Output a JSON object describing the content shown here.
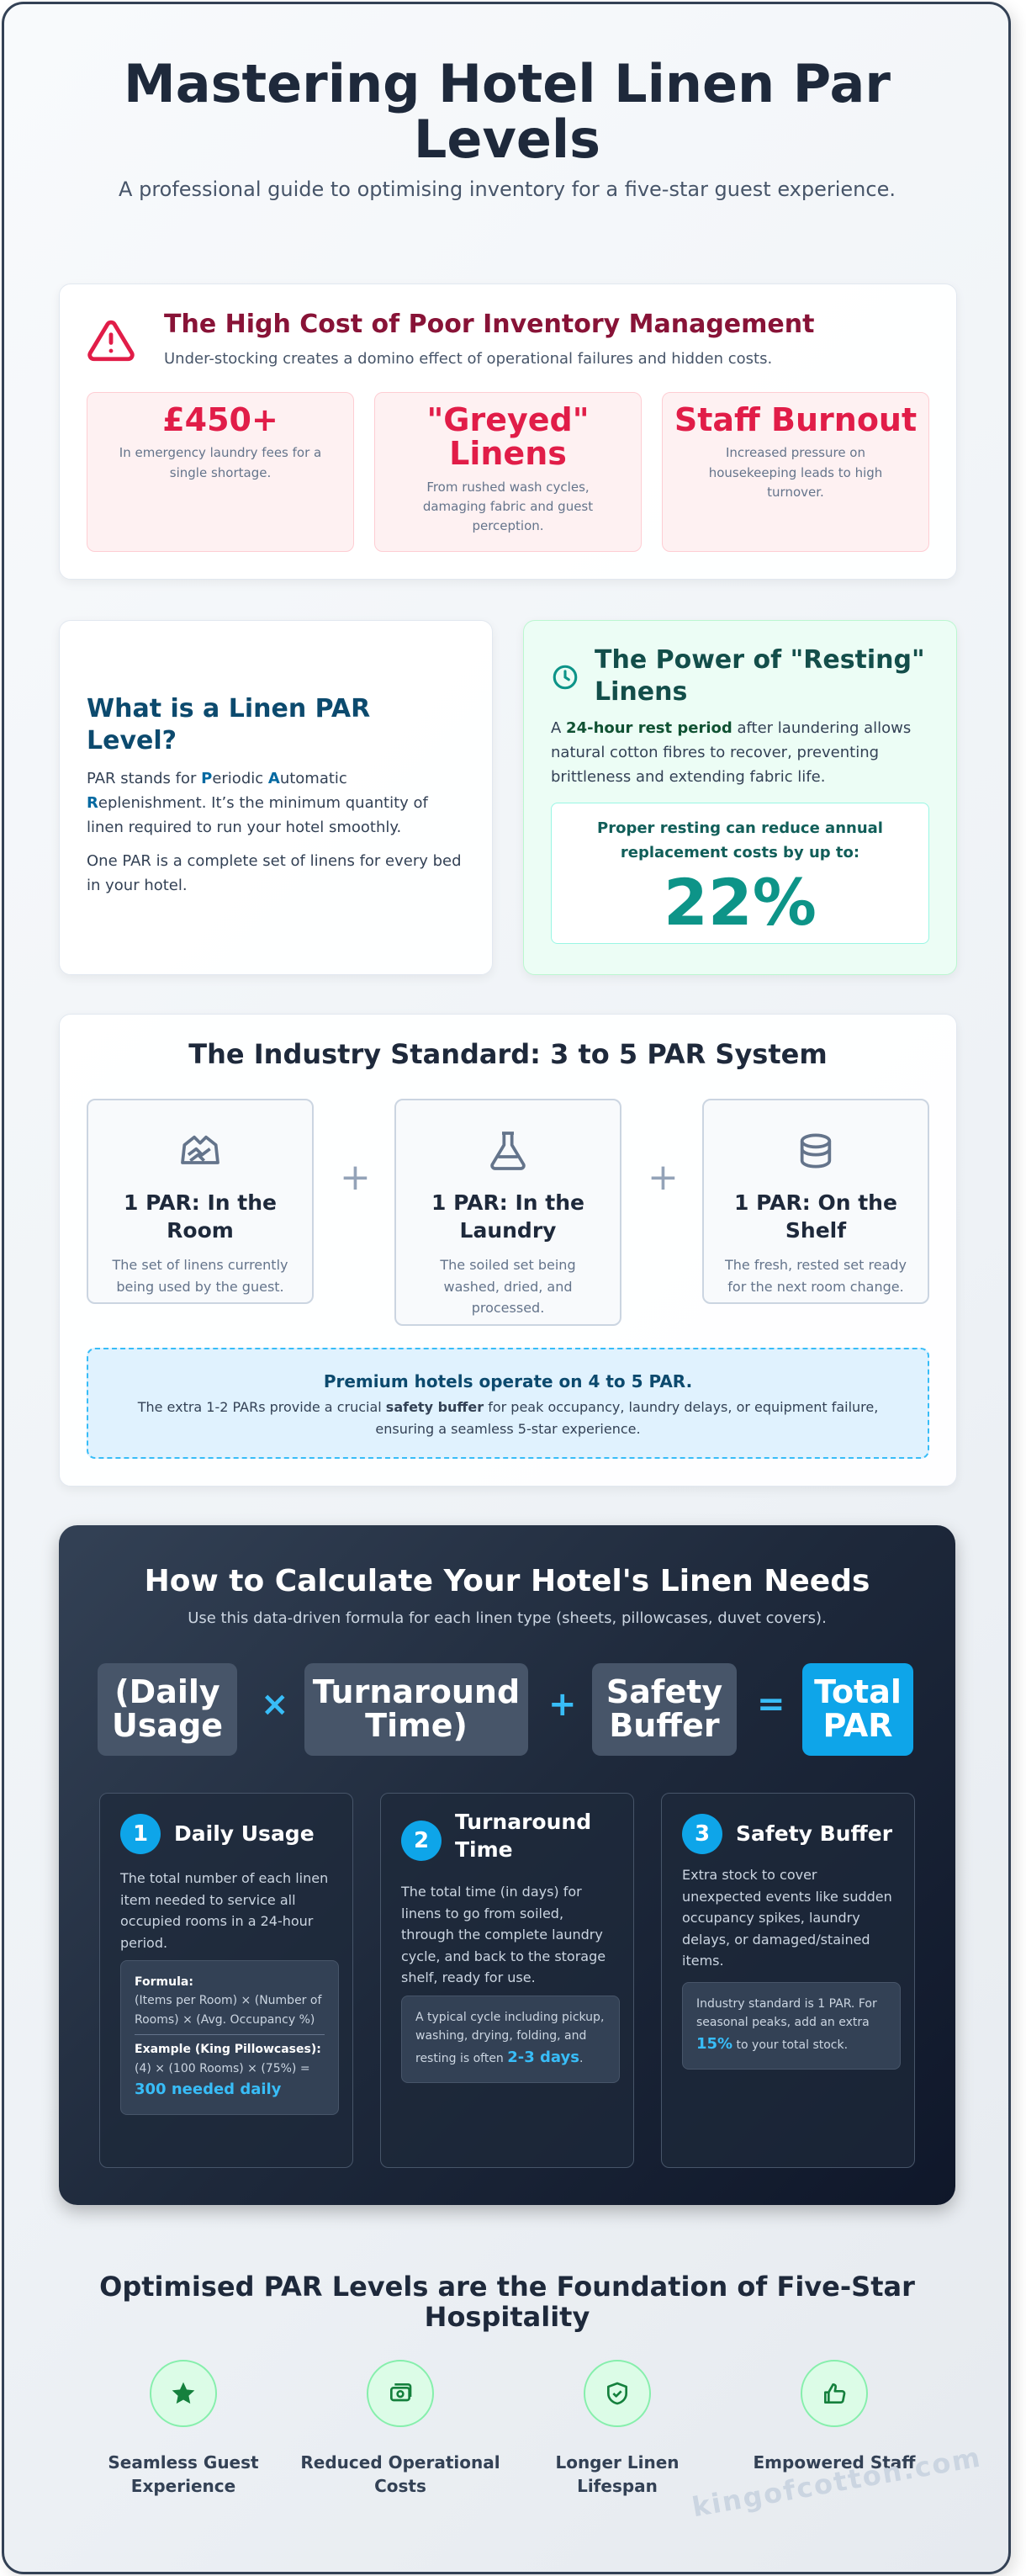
{
  "header": {
    "title": "Mastering Hotel Linen Par Levels",
    "subtitle": "A professional guide to optimising inventory for a five-star guest experience."
  },
  "cost_section": {
    "icon": "warning-triangle-icon",
    "title": "The High Cost of Poor Inventory Management",
    "lead": "Under-stocking creates a domino effect of operational failures and hidden costs.",
    "cards": [
      {
        "value": "£450+",
        "text": "In emergency laundry fees for a single shortage."
      },
      {
        "value": "\"Greyed\" Linens",
        "text": "From rushed wash cycles, damaging fabric and guest perception."
      },
      {
        "value": "Staff Burnout",
        "text": "Increased pressure on housekeeping leads to high turnover."
      }
    ]
  },
  "par_definition": {
    "title": "What is a Linen PAR Level?",
    "p1_pre": "PAR stands for ",
    "p1_letter_p": "P",
    "p1_eriodic": "eriodic ",
    "p1_letter_a": "A",
    "p1_utomatic": "utomatic ",
    "p1_letter_r": "R",
    "p1_rest": "eplenishment. It’s the minimum quantity of linen required to run your hotel smoothly.",
    "p2": "One PAR is a complete set of linens for every bed in your hotel."
  },
  "resting": {
    "icon": "clock-icon",
    "title": "The Power of \"Resting\" Linens",
    "body_pre": "A ",
    "body_bold": "24-hour rest period",
    "body_post": " after laundering allows natural cotton fibres to recover, preventing brittleness and extending fabric life.",
    "box_label": "Proper resting can reduce annual replacement costs by up to:",
    "box_value": "22%"
  },
  "standard": {
    "title": "The Industry Standard: 3 to 5 PAR System",
    "plus": "+",
    "pars": [
      {
        "icon": "bed-linen-icon",
        "title": "1 PAR: In the Room",
        "text": "The set of linens currently being used by the guest."
      },
      {
        "icon": "laundry-flask-icon",
        "title": "1 PAR: In the Laundry",
        "text": "The soiled set being washed, dried, and processed."
      },
      {
        "icon": "shelf-box-icon",
        "title": "1 PAR: On the Shelf",
        "text": "The fresh, rested set ready for the next room change."
      }
    ],
    "premium_title": "Premium hotels operate on 4 to 5 PAR.",
    "premium_pre": "The extra 1-2 PARs provide a crucial ",
    "premium_bold": "safety buffer",
    "premium_post": " for peak occupancy, laundry delays, or equipment failure, ensuring a seamless 5-star experience."
  },
  "calc": {
    "title": "How to Calculate Your Hotel's Linen Needs",
    "lead": "Use this data-driven formula for each linen type (sheets, pillowcases, duvet covers).",
    "formula": {
      "a": "(Daily Usage",
      "op1": "×",
      "b": "Turnaround Time)",
      "op2": "+",
      "c": "Safety Buffer",
      "op3": "=",
      "d": "Total PAR"
    },
    "steps": [
      {
        "num": "1",
        "title": "Daily Usage",
        "text": "The total number of each linen item needed to service all occupied rooms in a 24-hour period.",
        "formula_label": "Formula:",
        "formula_text": "(Items per Room) × (Number of Rooms) × (Avg. Occupancy %)",
        "example_label": "Example (King Pillowcases):",
        "example_text": "(4) × (100 Rooms) × (75%) =",
        "example_result": "300 needed daily"
      },
      {
        "num": "2",
        "title": "Turnaround Time",
        "text": "The total time (in days) for linens to go from soiled, through the complete laundry cycle, and back to the storage shelf, ready for use.",
        "note_pre": "A typical cycle including pickup, washing, drying, folding, and resting is often ",
        "note_hl": "2-3 days",
        "note_post": "."
      },
      {
        "num": "3",
        "title": "Safety Buffer",
        "text": "Extra stock to cover unexpected events like sudden occupancy spikes, laundry delays, or damaged/stained items.",
        "note_pre": "Industry standard is 1 PAR. For seasonal peaks, add an extra ",
        "note_hl": "15%",
        "note_post": " to your total stock."
      }
    ]
  },
  "footer": {
    "title": "Optimised PAR Levels are the Foundation of Five-Star Hospitality",
    "benefits": [
      {
        "icon": "star-icon",
        "label": "Seamless Guest Experience"
      },
      {
        "icon": "money-icon",
        "label": "Reduced Operational Costs"
      },
      {
        "icon": "shield-check-icon",
        "label": "Longer Linen Lifespan"
      },
      {
        "icon": "thumbs-up-icon",
        "label": "Empowered Staff"
      }
    ],
    "watermark": "kingofcotton.com"
  },
  "colors": {
    "danger": "#e11d48",
    "teal": "#0d9488",
    "sky": "#0ea5e9",
    "dark": "#1e293b"
  }
}
